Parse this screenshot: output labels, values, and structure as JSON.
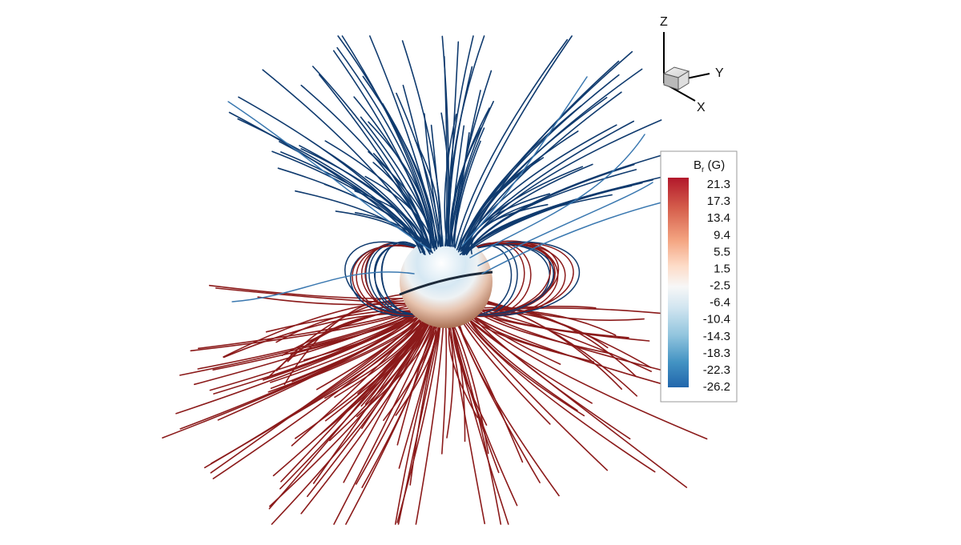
{
  "axes_triad": {
    "z_label": "Z",
    "y_label": "Y",
    "x_label": "X"
  },
  "colorbar": {
    "title_main": "B",
    "title_sub": "r",
    "title_unit": " (G)",
    "ticks": [
      "21.3",
      "17.3",
      "13.4",
      "9.4",
      "5.5",
      "1.5",
      "-2.5",
      "-6.4",
      "-10.4",
      "-14.3",
      "-18.3",
      "-22.3",
      "-26.2"
    ],
    "colormap": [
      "#b2182b",
      "#d6604d",
      "#f4a582",
      "#fddbc7",
      "#f7f7f7",
      "#d1e5f0",
      "#92c5de",
      "#4393c3",
      "#2166ac"
    ]
  },
  "field_lines": {
    "positive_color": "#8b1a1a",
    "negative_color": "#0f3a6e",
    "open_negative_color": "#3a78b0"
  },
  "sphere": {
    "north_color": "#9cc6e0",
    "south_color": "#c08566"
  }
}
